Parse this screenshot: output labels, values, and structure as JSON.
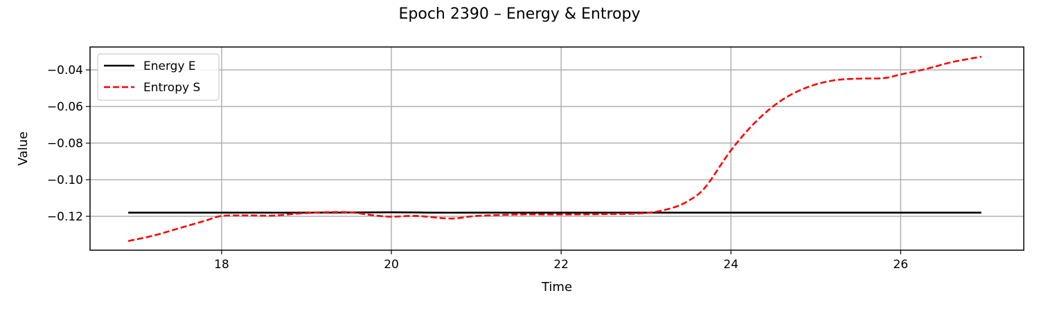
{
  "chart_data": {
    "type": "line",
    "title": "Epoch 2390 – Energy & Entropy",
    "xlabel": "Time",
    "ylabel": "Value",
    "xlim": [
      16.45,
      27.45
    ],
    "ylim": [
      -0.1385,
      -0.0275
    ],
    "xticks": [
      18,
      20,
      22,
      24,
      26
    ],
    "xtick_labels": [
      "18",
      "20",
      "22",
      "24",
      "26"
    ],
    "yticks": [
      -0.04,
      -0.06,
      -0.08,
      -0.1,
      -0.12
    ],
    "ytick_labels": [
      "−0.04",
      "−0.06",
      "−0.08",
      "−0.10",
      "−0.12"
    ],
    "grid": true,
    "legend_position": "top-left",
    "series": [
      {
        "name": "Energy E",
        "color": "#000000",
        "style": "solid",
        "x": [
          16.9,
          18.0,
          19.0,
          20.0,
          20.5,
          21.0,
          22.0,
          23.0,
          24.0,
          25.0,
          26.0,
          26.95
        ],
        "y": [
          -0.118,
          -0.118,
          -0.118,
          -0.1178,
          -0.118,
          -0.118,
          -0.118,
          -0.118,
          -0.118,
          -0.118,
          -0.118,
          -0.118
        ]
      },
      {
        "name": "Entropy S",
        "color": "#ff0000",
        "style": "dashed",
        "x": [
          16.9,
          17.2,
          17.5,
          17.8,
          18.0,
          18.3,
          18.6,
          18.9,
          19.2,
          19.5,
          19.8,
          20.0,
          20.3,
          20.7,
          21.0,
          21.5,
          22.0,
          22.5,
          23.0,
          23.3,
          23.5,
          23.7,
          24.0,
          24.3,
          24.6,
          24.9,
          25.2,
          25.5,
          25.8,
          26.0,
          26.3,
          26.6,
          26.95
        ],
        "y": [
          -0.1335,
          -0.1305,
          -0.1265,
          -0.1225,
          -0.1198,
          -0.1195,
          -0.1196,
          -0.1185,
          -0.1178,
          -0.1178,
          -0.1195,
          -0.1202,
          -0.1198,
          -0.1212,
          -0.1198,
          -0.119,
          -0.119,
          -0.1188,
          -0.1182,
          -0.1155,
          -0.1115,
          -0.104,
          -0.084,
          -0.068,
          -0.0565,
          -0.0495,
          -0.0458,
          -0.0448,
          -0.0445,
          -0.0425,
          -0.0395,
          -0.0358,
          -0.0328
        ]
      }
    ]
  }
}
